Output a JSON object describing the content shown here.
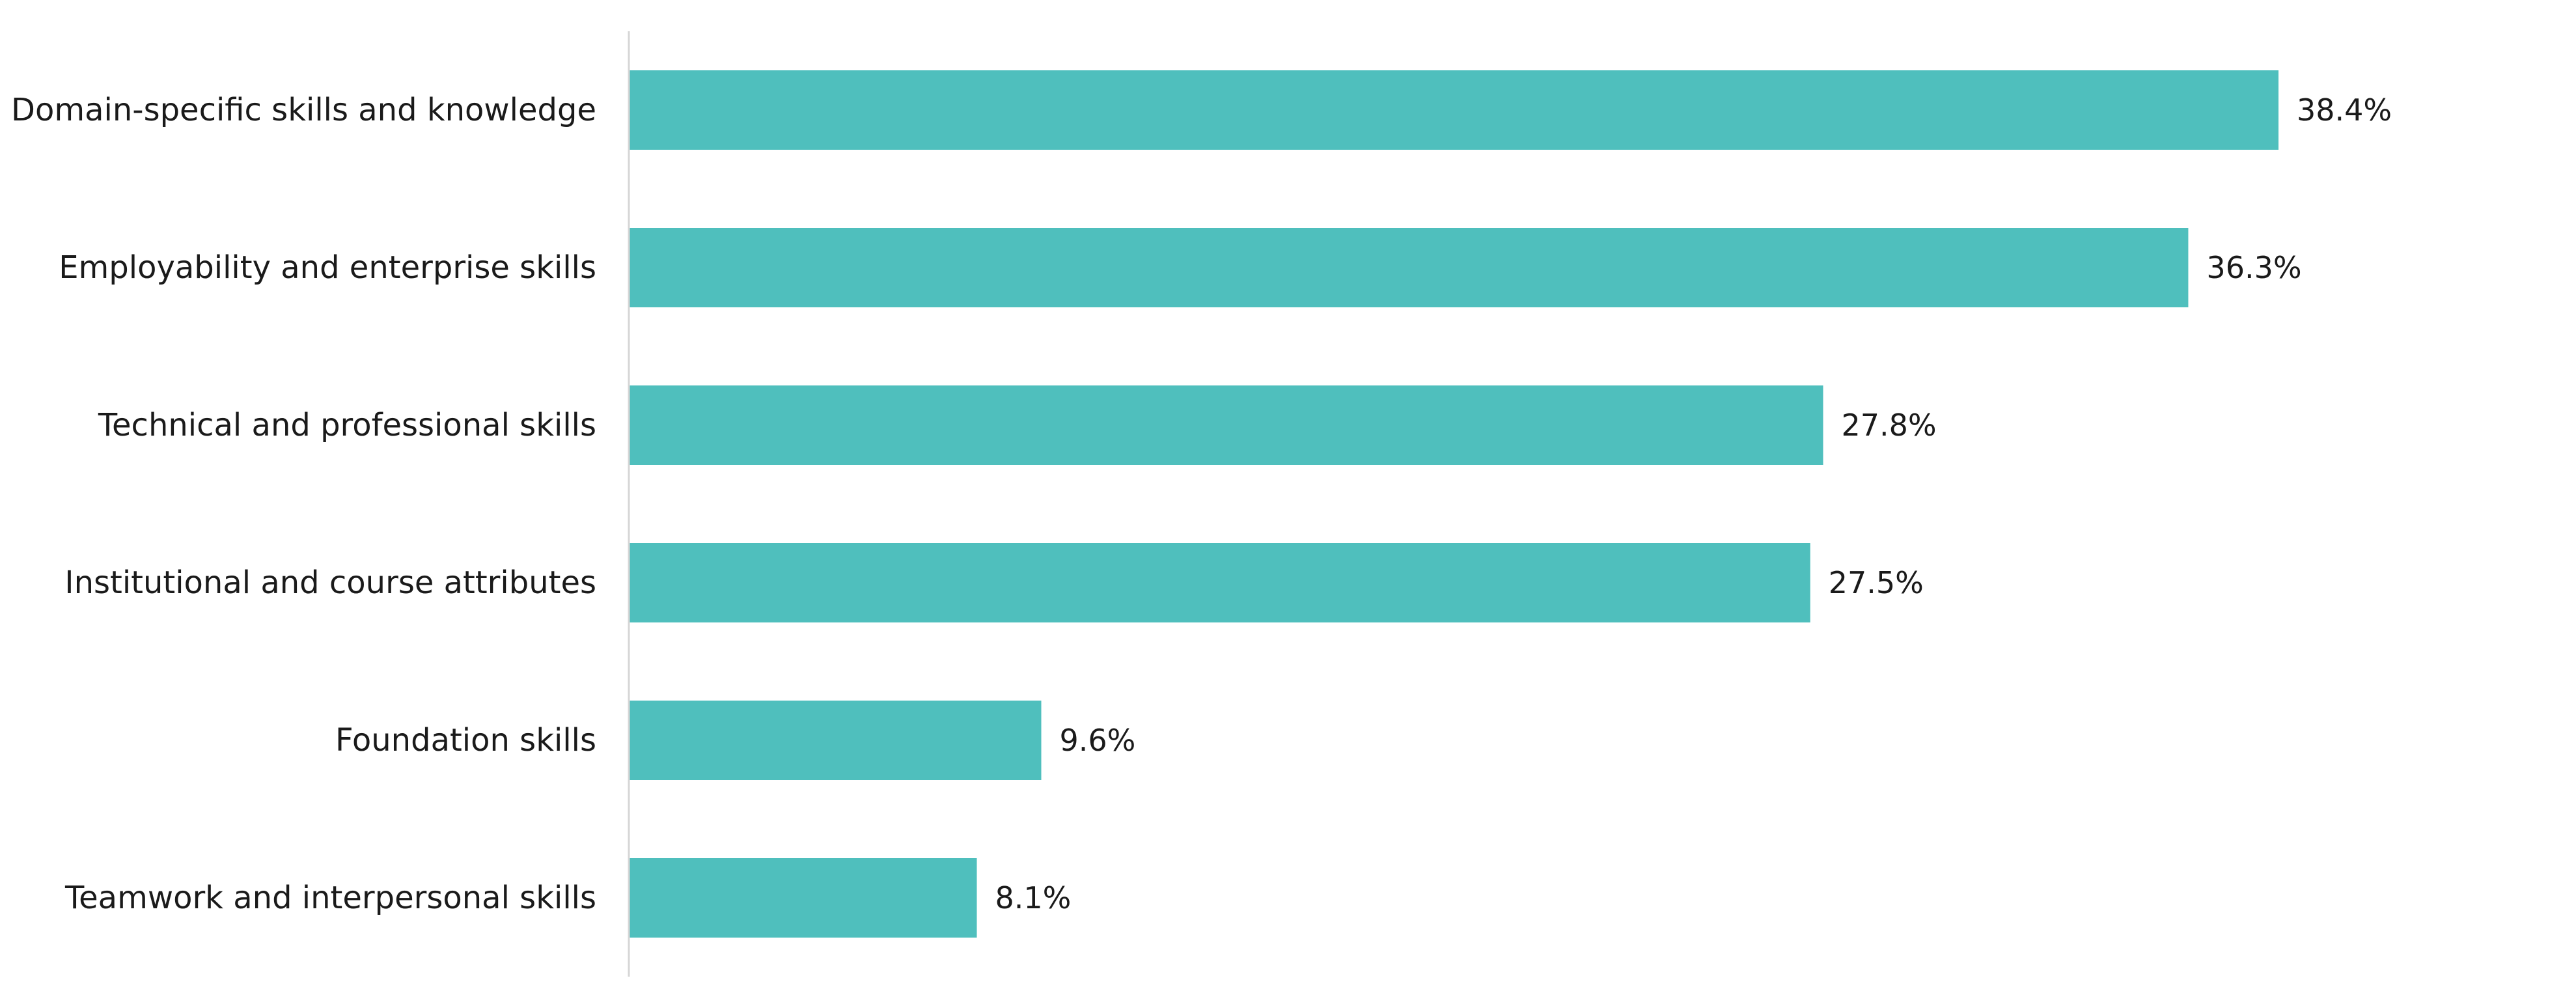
{
  "chart_data": {
    "type": "bar",
    "orientation": "horizontal",
    "categories": [
      "Domain-specific skills and knowledge",
      "Employability and enterprise skills",
      "Technical and professional skills",
      "Institutional and course attributes",
      "Foundation skills",
      "Teamwork and interpersonal skills"
    ],
    "values": [
      38.4,
      36.3,
      27.8,
      27.5,
      9.6,
      8.1
    ],
    "value_labels": [
      "38.4%",
      "36.3%",
      "27.8%",
      "27.5%",
      "9.6%",
      "8.1%"
    ],
    "xlim": [
      0,
      50
    ],
    "grid": false,
    "legend": "none",
    "colors": {
      "bar": "#4fbfbd",
      "axis": "#d6d6d6",
      "text": "#1a1a1a"
    }
  }
}
